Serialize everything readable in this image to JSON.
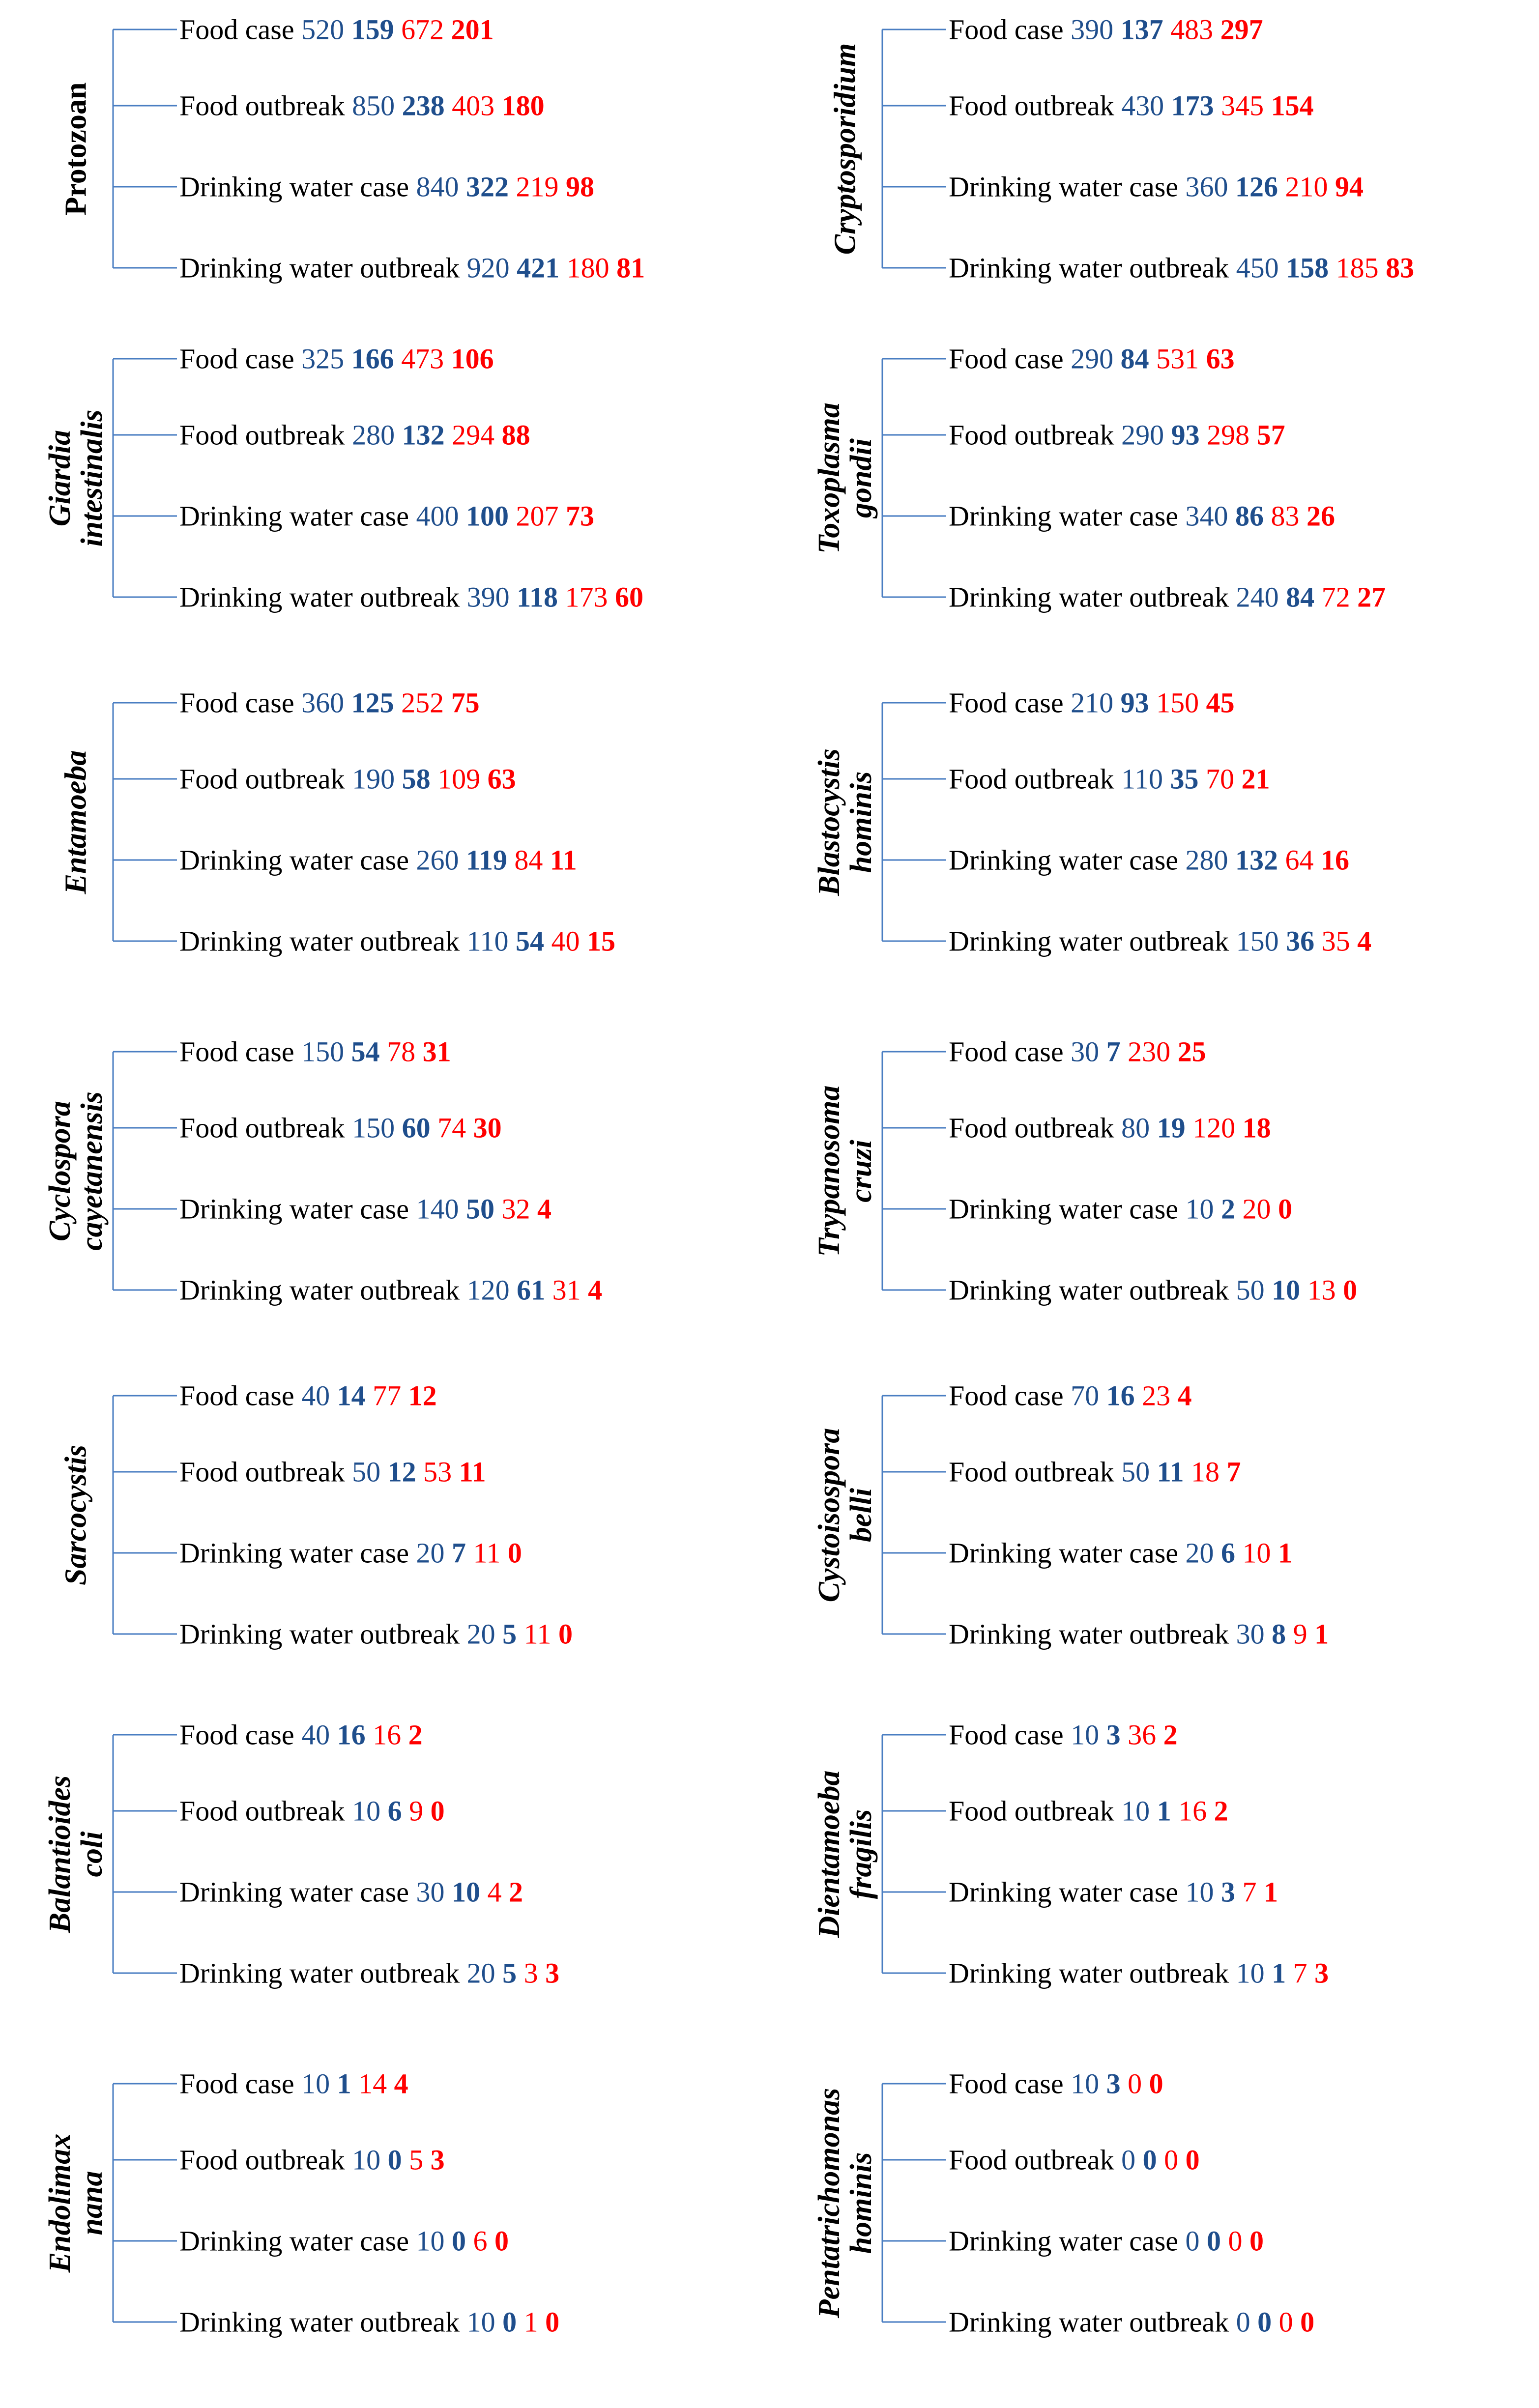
{
  "colors": {
    "line": "#4a7ec2",
    "blue": "#1f4e8c",
    "red": "#ff0000"
  },
  "panels": [
    {
      "label": "Protozoan",
      "italic": false,
      "rows": [
        {
          "label": "Food case",
          "v": [
            "520",
            "159",
            "672",
            "201"
          ]
        },
        {
          "label": "Food outbreak",
          "v": [
            "850",
            "238",
            "403",
            "180"
          ]
        },
        {
          "label": "Drinking water case",
          "v": [
            "840",
            "322",
            "219",
            "98"
          ]
        },
        {
          "label": "Drinking water outbreak",
          "v": [
            "920",
            "421",
            "180",
            "81"
          ]
        }
      ]
    },
    {
      "label": "Cryptosporidium",
      "italic": true,
      "rows": [
        {
          "label": "Food case",
          "v": [
            "390",
            "137",
            "483",
            "297"
          ]
        },
        {
          "label": "Food outbreak",
          "v": [
            "430",
            "173",
            "345",
            "154"
          ]
        },
        {
          "label": "Drinking water case",
          "v": [
            "360",
            "126",
            "210",
            "94"
          ]
        },
        {
          "label": "Drinking water outbreak",
          "v": [
            "450",
            "158",
            "185",
            "83"
          ]
        }
      ]
    },
    {
      "label": "Giardia intestinalis",
      "italic": true,
      "rows": [
        {
          "label": "Food case",
          "v": [
            "325",
            "166",
            "473",
            "106"
          ]
        },
        {
          "label": "Food outbreak",
          "v": [
            "280",
            "132",
            "294",
            "88"
          ]
        },
        {
          "label": "Drinking water case",
          "v": [
            "400",
            "100",
            "207",
            "73"
          ]
        },
        {
          "label": "Drinking water outbreak",
          "v": [
            "390",
            "118",
            "173",
            "60"
          ]
        }
      ]
    },
    {
      "label": "Toxoplasma gondii",
      "italic": true,
      "rows": [
        {
          "label": "Food case",
          "v": [
            "290",
            "84",
            "531",
            "63"
          ]
        },
        {
          "label": "Food outbreak",
          "v": [
            "290",
            "93",
            "298",
            "57"
          ]
        },
        {
          "label": "Drinking water case",
          "v": [
            "340",
            "86",
            "83",
            "26"
          ]
        },
        {
          "label": "Drinking water outbreak",
          "v": [
            "240",
            "84",
            "72",
            "27"
          ]
        }
      ]
    },
    {
      "label": "Entamoeba",
      "italic": true,
      "rows": [
        {
          "label": "Food case",
          "v": [
            "360",
            "125",
            "252",
            "75"
          ]
        },
        {
          "label": "Food outbreak",
          "v": [
            "190",
            "58",
            "109",
            "63"
          ]
        },
        {
          "label": "Drinking water case",
          "v": [
            "260",
            "119",
            "84",
            "11"
          ]
        },
        {
          "label": "Drinking water outbreak",
          "v": [
            "110",
            "54",
            "40",
            "15"
          ]
        }
      ]
    },
    {
      "label": "Blastocystis hominis",
      "italic": true,
      "rows": [
        {
          "label": "Food case",
          "v": [
            "210",
            "93",
            "150",
            "45"
          ]
        },
        {
          "label": "Food outbreak",
          "v": [
            "110",
            "35",
            "70",
            "21"
          ]
        },
        {
          "label": "Drinking water case",
          "v": [
            "280",
            "132",
            "64",
            "16"
          ]
        },
        {
          "label": "Drinking water outbreak",
          "v": [
            "150",
            "36",
            "35",
            "4"
          ]
        }
      ]
    },
    {
      "label": "Cyclospora cayetanensis",
      "italic": true,
      "rows": [
        {
          "label": "Food case",
          "v": [
            "150",
            "54",
            "78",
            "31"
          ]
        },
        {
          "label": "Food outbreak",
          "v": [
            "150",
            "60",
            "74",
            "30"
          ]
        },
        {
          "label": "Drinking water case",
          "v": [
            "140",
            "50",
            "32",
            "4"
          ]
        },
        {
          "label": "Drinking water outbreak",
          "v": [
            "120",
            "61",
            "31",
            "4"
          ]
        }
      ]
    },
    {
      "label": "Trypanosoma cruzi",
      "italic": true,
      "rows": [
        {
          "label": "Food case",
          "v": [
            "30",
            "7",
            "230",
            "25"
          ]
        },
        {
          "label": "Food outbreak",
          "v": [
            "80",
            "19",
            "120",
            "18"
          ]
        },
        {
          "label": "Drinking water case",
          "v": [
            "10",
            "2",
            "20",
            "0"
          ]
        },
        {
          "label": "Drinking water outbreak",
          "v": [
            "50",
            "10",
            "13",
            "0"
          ]
        }
      ]
    },
    {
      "label": "Sarcocystis",
      "italic": true,
      "rows": [
        {
          "label": "Food case",
          "v": [
            "40",
            "14",
            "77",
            "12"
          ]
        },
        {
          "label": "Food outbreak",
          "v": [
            "50",
            "12",
            "53",
            "11"
          ]
        },
        {
          "label": "Drinking water case",
          "v": [
            "20",
            "7",
            "11",
            "0"
          ]
        },
        {
          "label": "Drinking water outbreak",
          "v": [
            "20",
            "5",
            "11",
            "0"
          ]
        }
      ]
    },
    {
      "label": "Cystoisospora belli",
      "italic": true,
      "rows": [
        {
          "label": "Food case",
          "v": [
            "70",
            "16",
            "23",
            "4"
          ]
        },
        {
          "label": "Food outbreak",
          "v": [
            "50",
            "11",
            "18",
            "7"
          ]
        },
        {
          "label": "Drinking water case",
          "v": [
            "20",
            "6",
            "10",
            "1"
          ]
        },
        {
          "label": "Drinking water outbreak",
          "v": [
            "30",
            "8",
            "9",
            "1"
          ]
        }
      ]
    },
    {
      "label": "Balantioides coli",
      "italic": true,
      "rows": [
        {
          "label": "Food case",
          "v": [
            "40",
            "16",
            "16",
            "2"
          ]
        },
        {
          "label": "Food outbreak",
          "v": [
            "10",
            "6",
            "9",
            "0"
          ]
        },
        {
          "label": "Drinking water case",
          "v": [
            "30",
            "10",
            "4",
            "2"
          ]
        },
        {
          "label": "Drinking water outbreak",
          "v": [
            "20",
            "5",
            "3",
            "3"
          ]
        }
      ]
    },
    {
      "label": "Dientamoeba fragilis",
      "italic": true,
      "rows": [
        {
          "label": "Food case",
          "v": [
            "10",
            "3",
            "36",
            "2"
          ]
        },
        {
          "label": "Food outbreak",
          "v": [
            "10",
            "1",
            "16",
            "2"
          ]
        },
        {
          "label": "Drinking water case",
          "v": [
            "10",
            "3",
            "7",
            "1"
          ]
        },
        {
          "label": "Drinking water outbreak",
          "v": [
            "10",
            "1",
            "7",
            "3"
          ]
        }
      ]
    },
    {
      "label": "Endolimax nana",
      "italic": true,
      "rows": [
        {
          "label": "Food case",
          "v": [
            "10",
            "1",
            "14",
            "4"
          ]
        },
        {
          "label": "Food outbreak",
          "v": [
            "10",
            "0",
            "5",
            "3"
          ]
        },
        {
          "label": "Drinking water case",
          "v": [
            "10",
            "0",
            "6",
            "0"
          ]
        },
        {
          "label": "Drinking water outbreak",
          "v": [
            "10",
            "0",
            "1",
            "0"
          ]
        }
      ]
    },
    {
      "label": "Pentatrichomonas hominis",
      "italic": true,
      "rows": [
        {
          "label": "Food case",
          "v": [
            "10",
            "3",
            "0",
            "0"
          ]
        },
        {
          "label": "Food outbreak",
          "v": [
            "0",
            "0",
            "0",
            "0"
          ]
        },
        {
          "label": "Drinking water case",
          "v": [
            "0",
            "0",
            "0",
            "0"
          ]
        },
        {
          "label": "Drinking water outbreak",
          "v": [
            "0",
            "0",
            "0",
            "0"
          ]
        }
      ]
    }
  ]
}
